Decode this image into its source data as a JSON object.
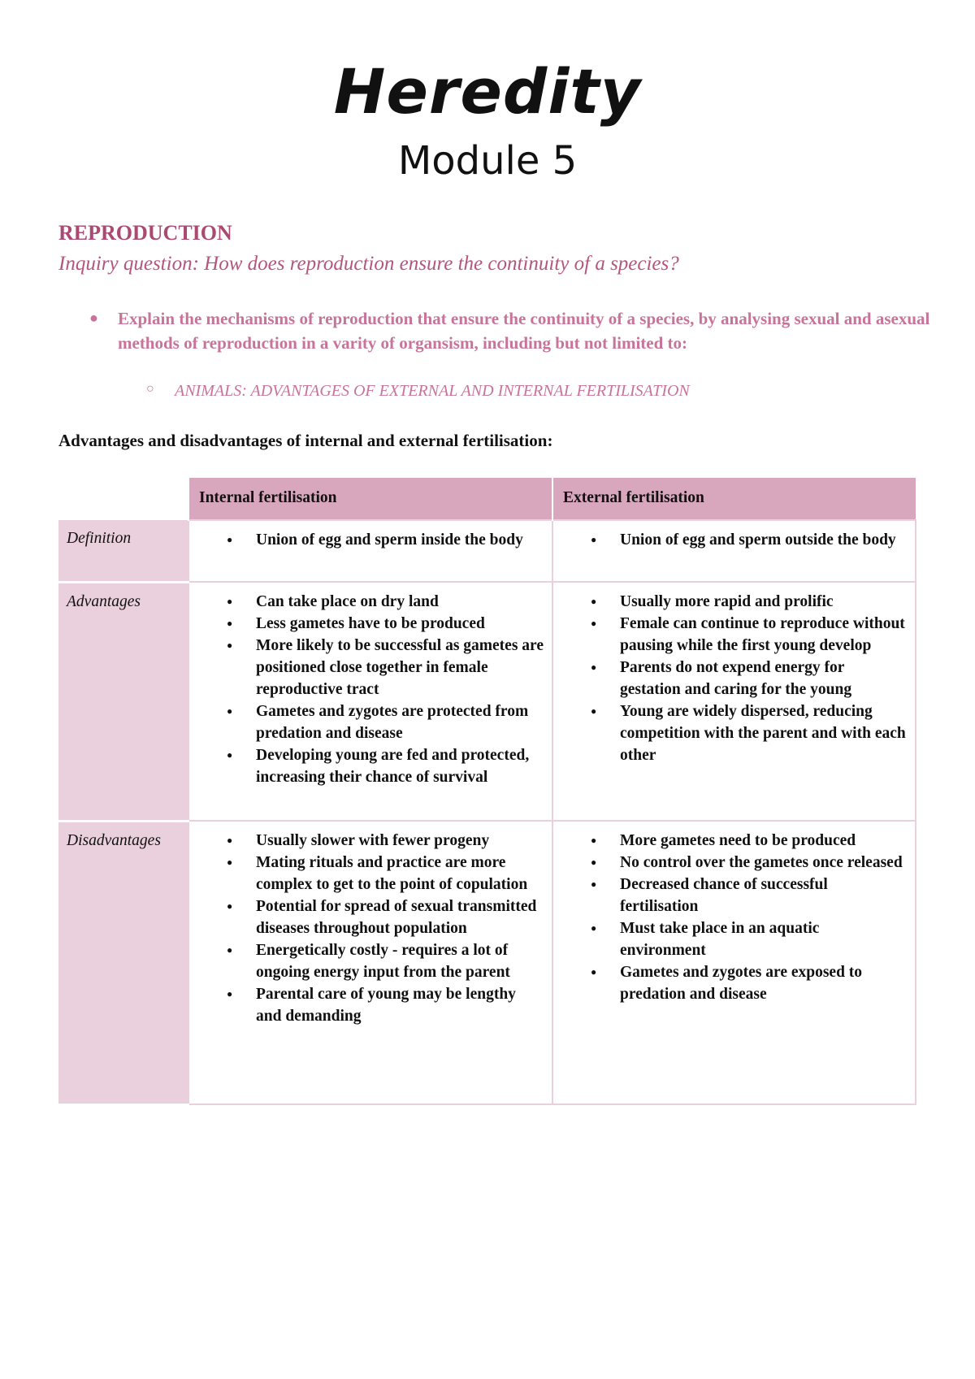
{
  "title": "Heredity",
  "subtitle": "Module 5",
  "section": "REPRODUCTION",
  "inquiry": "Inquiry question: How does reproduction ensure the continuity of a species?",
  "outcome": "Explain the mechanisms of reproduction that ensure the continuity of a species, by analysing sexual and asexual methods of reproduction in a varity of organsism, including but not limited to:",
  "sub_point": "ANIMALS: ADVANTAGES OF EXTERNAL AND INTERNAL FERTILISATION",
  "table_heading": "Advantages and disadvantages of internal and external fertilisation:",
  "colors": {
    "header": "#d8a6bd",
    "row_label": "#ead0dc",
    "accent": "#a94a72",
    "outcome": "#c8739a"
  },
  "table": {
    "headers": [
      "",
      "Internal fertilisation",
      "External fertilisation"
    ],
    "rows": [
      {
        "label": "Definition",
        "internal": [
          "Union of egg and sperm inside the body"
        ],
        "external": [
          "Union of egg and sperm outside the body"
        ]
      },
      {
        "label": "Advantages",
        "internal": [
          "Can take place on dry land",
          "Less gametes have to be produced",
          "More likely to be successful as gametes are positioned close together in female reproductive tract",
          "Gametes and zygotes are protected from predation and disease",
          "Developing young are fed and protected, increasing their chance of survival"
        ],
        "external": [
          "Usually more rapid and prolific",
          "Female can continue to reproduce without pausing while the first young develop",
          "Parents do not expend energy for gestation and caring for the young",
          "Young are widely dispersed, reducing competition with the parent and with each other"
        ]
      },
      {
        "label": "Disadvantages",
        "internal": [
          "Usually slower with fewer progeny",
          "Mating rituals and practice are more complex to get to the point of copulation",
          "Potential for spread of sexual transmitted diseases throughout population",
          "Energetically costly - requires a lot of ongoing energy input from the parent",
          "Parental care of young may be lengthy and demanding"
        ],
        "external": [
          "More gametes need to be produced",
          "No control over the gametes once released",
          "Decreased chance of successful fertilisation",
          "Must take place in an aquatic environment",
          "Gametes and zygotes are exposed to predation and disease"
        ]
      }
    ]
  }
}
